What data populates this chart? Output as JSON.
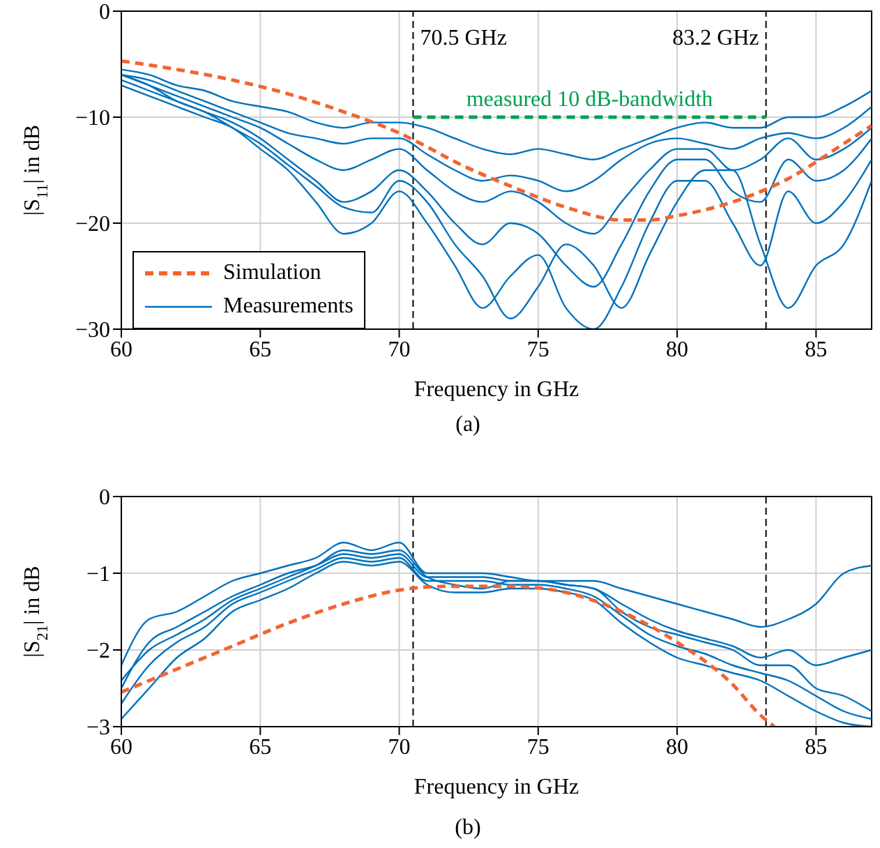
{
  "chart_data": [
    {
      "type": "line",
      "xlabel": "Frequency in GHz",
      "ylabel": "|S$_{11}$| in dB",
      "xlim": [
        60,
        87
      ],
      "xticks": [
        60,
        65,
        70,
        75,
        80,
        85
      ],
      "ylim": [
        -30,
        0
      ],
      "yticks": [
        -30,
        -20,
        -10,
        0
      ],
      "grid": true,
      "legend": "bottom left",
      "marker": "none",
      "x": [
        60,
        61,
        62,
        63,
        64,
        65,
        66,
        67,
        68,
        69,
        70,
        71,
        72,
        73,
        74,
        75,
        76,
        77,
        78,
        79,
        80,
        81,
        82,
        83,
        84,
        85,
        86,
        87
      ],
      "series": [
        {
          "name": "Measurements",
          "color": "#0072bd",
          "line_style": "solid",
          "values": [
            -5.5,
            -6,
            -7,
            -7.5,
            -8.5,
            -9,
            -9.5,
            -10.5,
            -11,
            -10.5,
            -10.5,
            -11,
            -12,
            -13,
            -13.5,
            -13,
            -13.5,
            -14,
            -13,
            -12,
            -11,
            -10.5,
            -11,
            -11,
            -10,
            -10,
            -9,
            -7.5
          ]
        },
        {
          "color": "#0072bd",
          "line_style": "solid",
          "values": [
            -6,
            -6.5,
            -7.5,
            -8.5,
            -9.5,
            -10.5,
            -11.5,
            -12,
            -12.5,
            -12,
            -12,
            -13.5,
            -15,
            -16,
            -15.5,
            -16,
            -17,
            -16,
            -14,
            -12.5,
            -12,
            -12.5,
            -13,
            -12,
            -11.5,
            -12,
            -11,
            -9
          ]
        },
        {
          "color": "#0072bd",
          "line_style": "solid",
          "values": [
            -6,
            -7,
            -8,
            -9,
            -10,
            -11,
            -12.5,
            -14,
            -15,
            -14,
            -13,
            -15,
            -17,
            -18,
            -17,
            -18,
            -20,
            -21,
            -18,
            -15,
            -13,
            -13,
            -15,
            -14,
            -12,
            -14,
            -13,
            -11
          ]
        },
        {
          "color": "#0072bd",
          "line_style": "solid",
          "values": [
            -6.5,
            -7.5,
            -8.5,
            -9.5,
            -10.5,
            -12,
            -14,
            -16,
            -18,
            -17,
            -15,
            -17,
            -20,
            -22,
            -20,
            -21,
            -24,
            -26,
            -22,
            -17,
            -14,
            -14,
            -17,
            -18,
            -14,
            -16,
            -15,
            -12
          ]
        },
        {
          "color": "#0072bd",
          "line_style": "solid",
          "values": [
            -7,
            -8,
            -9,
            -10,
            -11,
            -13,
            -15,
            -18,
            -21,
            -20,
            -17,
            -20,
            -24,
            -28,
            -25,
            -23,
            -28,
            -30,
            -26,
            -20,
            -16,
            -16,
            -20,
            -24,
            -17,
            -20,
            -18,
            -14
          ]
        },
        {
          "color": "#0072bd",
          "line_style": "solid",
          "values": [
            -6,
            -7,
            -8.5,
            -9.5,
            -11,
            -12.5,
            -14.5,
            -16.5,
            -18.5,
            -19,
            -16,
            -18,
            -22,
            -25,
            -29,
            -26,
            -22,
            -24,
            -28,
            -23,
            -18,
            -15,
            -15,
            -22,
            -28,
            -24,
            -22,
            -16
          ]
        },
        {
          "name": "Simulation",
          "color": "#f26531",
          "line_style": "dashed",
          "x": [
            60,
            62,
            64,
            66,
            68,
            70,
            71,
            72,
            74,
            76,
            78,
            79,
            80,
            82,
            83.2,
            84,
            86,
            87
          ],
          "values": [
            -4.7,
            -5.5,
            -6.5,
            -7.8,
            -9.5,
            -11.5,
            -12.8,
            -14.2,
            -16.5,
            -18.5,
            -19.7,
            -19.7,
            -19.3,
            -18,
            -16.8,
            -15.8,
            -12.5,
            -10.8
          ]
        },
        {
          "color": "#00a050",
          "line_style": "dashed",
          "x": [
            70.5,
            83.2
          ],
          "values": [
            -10,
            -10
          ]
        }
      ],
      "ref_lines": [
        {
          "axis": "x",
          "value": 70.5,
          "label": "70.5 GHz",
          "color": "#000000",
          "line_style": "dashed"
        },
        {
          "axis": "x",
          "value": 83.2,
          "label": "83.2 GHz",
          "color": "#000000",
          "line_style": "dashed"
        }
      ],
      "annotations": [
        {
          "text": "measured 10 dB-bandwidth",
          "x": 76.85,
          "y": -10
        },
        "(a)"
      ]
    },
    {
      "type": "line",
      "xlabel": "Frequency in GHz",
      "ylabel": "|S$_{21}$| in dB",
      "xlim": [
        60,
        87
      ],
      "xticks": [
        60,
        65,
        70,
        75,
        80,
        85
      ],
      "ylim": [
        -3,
        0
      ],
      "yticks": [
        -3,
        -2,
        -1,
        0
      ],
      "grid": true,
      "marker": "none",
      "x": [
        60,
        61,
        62,
        63,
        64,
        65,
        66,
        67,
        68,
        69,
        70,
        71,
        72,
        73,
        74,
        75,
        76,
        77,
        78,
        79,
        80,
        81,
        82,
        83,
        84,
        85,
        86,
        87
      ],
      "series": [
        {
          "color": "#0072bd",
          "line_style": "solid",
          "values": [
            -2.2,
            -1.6,
            -1.5,
            -1.3,
            -1.1,
            -1.0,
            -0.9,
            -0.8,
            -0.6,
            -0.7,
            -0.6,
            -1.0,
            -1.0,
            -1.0,
            -1.05,
            -1.1,
            -1.1,
            -1.1,
            -1.2,
            -1.3,
            -1.4,
            -1.5,
            -1.6,
            -1.7,
            -1.6,
            -1.4,
            -1.0,
            -0.9
          ]
        },
        {
          "color": "#0072bd",
          "line_style": "solid",
          "values": [
            -2.5,
            -1.9,
            -1.7,
            -1.5,
            -1.3,
            -1.15,
            -1.0,
            -0.9,
            -0.75,
            -0.8,
            -0.75,
            -1.05,
            -1.05,
            -1.05,
            -1.1,
            -1.1,
            -1.15,
            -1.2,
            -1.4,
            -1.6,
            -1.75,
            -1.85,
            -1.95,
            -2.1,
            -2.0,
            -2.2,
            -2.1,
            -2.0
          ]
        },
        {
          "color": "#0072bd",
          "line_style": "solid",
          "values": [
            -2.7,
            -2.2,
            -1.9,
            -1.7,
            -1.4,
            -1.25,
            -1.1,
            -0.95,
            -0.8,
            -0.85,
            -0.8,
            -1.1,
            -1.1,
            -1.1,
            -1.15,
            -1.15,
            -1.2,
            -1.3,
            -1.55,
            -1.8,
            -1.95,
            -2.05,
            -2.2,
            -2.3,
            -2.4,
            -2.6,
            -2.8,
            -2.9
          ]
        },
        {
          "color": "#0072bd",
          "line_style": "solid",
          "values": [
            -2.9,
            -2.5,
            -2.1,
            -1.85,
            -1.5,
            -1.35,
            -1.2,
            -1.0,
            -0.85,
            -0.9,
            -0.85,
            -1.15,
            -1.25,
            -1.25,
            -1.2,
            -1.2,
            -1.25,
            -1.35,
            -1.65,
            -1.9,
            -2.1,
            -2.2,
            -2.3,
            -2.4,
            -2.6,
            -2.8,
            -2.95,
            -3.0
          ]
        },
        {
          "color": "#0072bd",
          "line_style": "solid",
          "values": [
            -2.4,
            -2.0,
            -1.8,
            -1.6,
            -1.35,
            -1.2,
            -1.05,
            -0.9,
            -0.7,
            -0.75,
            -0.7,
            -1.05,
            -1.15,
            -1.2,
            -1.1,
            -1.1,
            -1.15,
            -1.2,
            -1.5,
            -1.7,
            -1.8,
            -1.9,
            -2.0,
            -2.2,
            -2.2,
            -2.5,
            -2.6,
            -2.8
          ]
        },
        {
          "color": "#f26531",
          "line_style": "dashed",
          "x": [
            60,
            62,
            64,
            66,
            68,
            70,
            71,
            72,
            74,
            76,
            78,
            80,
            82,
            83,
            83.5
          ],
          "values": [
            -2.55,
            -2.25,
            -1.95,
            -1.65,
            -1.4,
            -1.22,
            -1.18,
            -1.17,
            -1.17,
            -1.25,
            -1.5,
            -1.9,
            -2.45,
            -2.85,
            -3
          ]
        }
      ],
      "ref_lines": [
        {
          "axis": "x",
          "value": 70.5,
          "color": "#000000",
          "line_style": "dashed"
        },
        {
          "axis": "x",
          "value": 83.2,
          "color": "#000000",
          "line_style": "dashed"
        }
      ],
      "annotations": [
        "(b)"
      ]
    }
  ]
}
